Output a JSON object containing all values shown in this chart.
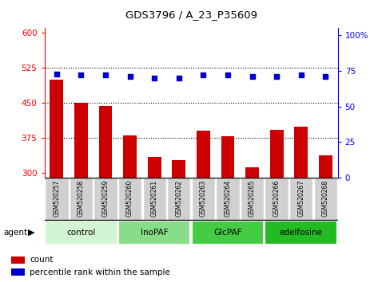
{
  "title": "GDS3796 / A_23_P35609",
  "samples": [
    "GSM520257",
    "GSM520258",
    "GSM520259",
    "GSM520260",
    "GSM520261",
    "GSM520262",
    "GSM520263",
    "GSM520264",
    "GSM520265",
    "GSM520266",
    "GSM520267",
    "GSM520268"
  ],
  "counts": [
    500,
    450,
    443,
    380,
    335,
    328,
    390,
    378,
    312,
    393,
    400,
    337
  ],
  "percentiles": [
    73,
    72,
    72,
    71,
    70,
    70,
    72,
    72,
    71,
    71,
    72,
    71
  ],
  "bar_color": "#cc0000",
  "dot_color": "#0000cc",
  "ylim_left": [
    290,
    610
  ],
  "ylim_right": [
    0,
    105
  ],
  "yticks_left": [
    300,
    375,
    450,
    525,
    600
  ],
  "yticks_right": [
    0,
    25,
    50,
    75,
    100
  ],
  "ytick_labels_right": [
    "0",
    "25",
    "50",
    "75",
    "100%"
  ],
  "hlines": [
    375,
    450,
    525
  ],
  "groups": [
    {
      "label": "control",
      "start": 0,
      "end": 3,
      "color": "#d4f5d4"
    },
    {
      "label": "InoPAF",
      "start": 3,
      "end": 6,
      "color": "#88dd88"
    },
    {
      "label": "GlcPAF",
      "start": 6,
      "end": 9,
      "color": "#44cc44"
    },
    {
      "label": "edelfosine",
      "start": 9,
      "end": 12,
      "color": "#22bb22"
    }
  ],
  "agent_label": "agent",
  "legend_count_label": "count",
  "legend_pct_label": "percentile rank within the sample",
  "sample_box_color": "#d0d0d0",
  "spine_color": "#888888"
}
